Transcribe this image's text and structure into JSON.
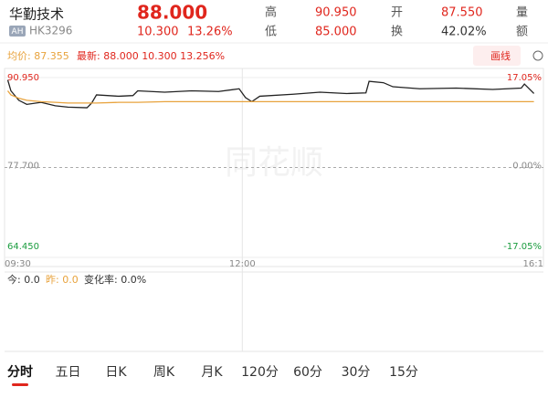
{
  "header": {
    "name": "华勤技术",
    "badge": "AH",
    "code": "HK3296",
    "price": "88.000",
    "change": "10.300",
    "change_pct": "13.26%",
    "stats": [
      {
        "label": "高",
        "value": "90.950"
      },
      {
        "label": "开",
        "value": "87.550"
      },
      {
        "label": "量",
        "value": ""
      },
      {
        "label": "低",
        "value": "85.000"
      },
      {
        "label": "换",
        "value": "42.02%"
      },
      {
        "label": "额",
        "value": ""
      }
    ]
  },
  "info_bar": {
    "avg": "均价: 87.355",
    "latest": "最新: 88.000 10.300 13.256%",
    "draw_button": "画线"
  },
  "chart_data": {
    "type": "line",
    "watermark": "同花顺",
    "x": [
      2,
      4,
      9,
      14,
      23,
      32,
      40,
      52,
      55,
      58,
      72,
      81,
      84,
      101,
      118,
      135,
      148,
      152,
      156,
      161,
      182,
      199,
      216,
      228,
      230,
      239,
      245,
      262,
      285,
      308,
      326,
      328,
      334
    ],
    "xlim": [
      0,
      340
    ],
    "xticks": [
      {
        "value": 0,
        "label": "09:30"
      },
      {
        "value": 150,
        "label": "12:00"
      },
      {
        "value": 340,
        "label": "16:1"
      }
    ],
    "ylim": [
      64.45,
      90.95
    ],
    "yticks": [
      {
        "value": 90.95,
        "label": "90.950"
      },
      {
        "value": 77.7,
        "label": "77.700"
      },
      {
        "value": 64.45,
        "label": "64.450"
      }
    ],
    "y2lim": [
      -17.05,
      17.05
    ],
    "y2ticks": [
      {
        "value": 17.05,
        "label": "17.05%"
      },
      {
        "value": 0,
        "label": "0.00%"
      },
      {
        "value": -17.05,
        "label": "-17.05%"
      }
    ],
    "series": [
      {
        "name": "价格",
        "color": "#222222",
        "values": [
          90.6,
          89.0,
          87.6,
          87.0,
          87.3,
          86.8,
          86.6,
          86.5,
          87.2,
          88.4,
          88.2,
          88.3,
          89.0,
          88.8,
          89.0,
          88.9,
          89.3,
          88.0,
          87.4,
          88.2,
          88.5,
          88.8,
          88.6,
          88.7,
          90.4,
          90.2,
          89.6,
          89.3,
          89.4,
          89.2,
          89.4,
          90.0,
          88.6
        ]
      },
      {
        "name": "均价",
        "color": "#e8a33d",
        "values": [
          89.0,
          88.4,
          87.9,
          87.6,
          87.4,
          87.3,
          87.2,
          87.2,
          87.2,
          87.2,
          87.3,
          87.3,
          87.3,
          87.4,
          87.4,
          87.4,
          87.4,
          87.4,
          87.4,
          87.4,
          87.4,
          87.4,
          87.4,
          87.4,
          87.4,
          87.4,
          87.4,
          87.4,
          87.4,
          87.4,
          87.4,
          87.4,
          87.4
        ]
      }
    ]
  },
  "indicator": {
    "today": "今: 0.0",
    "yesterday": "昨: 0.0",
    "rate": "变化率: 0.0%"
  },
  "tabs": [
    "分时",
    "五日",
    "日K",
    "周K",
    "月K",
    "120分",
    "60分",
    "30分",
    "15分"
  ]
}
